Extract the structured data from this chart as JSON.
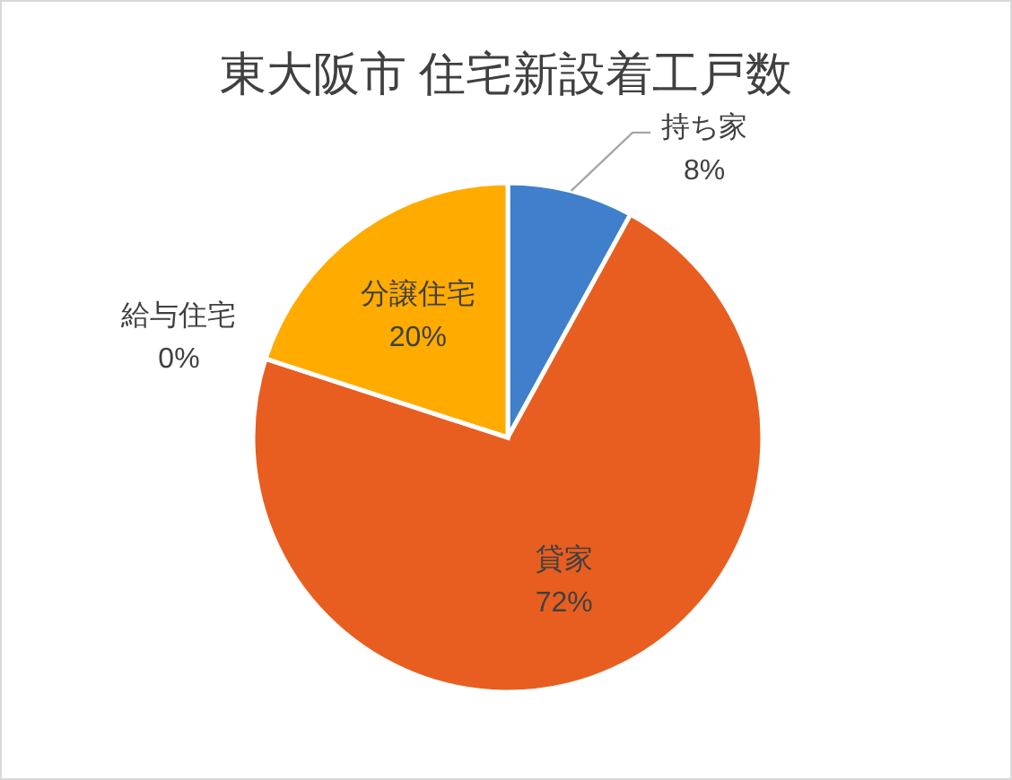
{
  "chart_data": {
    "type": "pie",
    "title": "東大阪市 住宅新設着工戸数",
    "categories": [
      "持ち家",
      "貸家",
      "給与住宅",
      "分譲住宅"
    ],
    "values": [
      8,
      72,
      0,
      20
    ],
    "colors": [
      "#3f7fcc",
      "#e85e20",
      "#a5a5a5",
      "#ffab00"
    ],
    "value_labels": [
      "8%",
      "72%",
      "0%",
      "20%"
    ]
  }
}
